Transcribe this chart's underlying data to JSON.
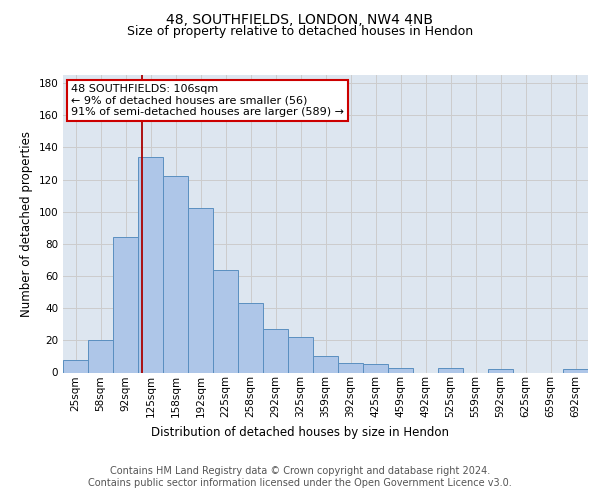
{
  "title1": "48, SOUTHFIELDS, LONDON, NW4 4NB",
  "title2": "Size of property relative to detached houses in Hendon",
  "xlabel": "Distribution of detached houses by size in Hendon",
  "ylabel": "Number of detached properties",
  "bar_labels": [
    "25sqm",
    "58sqm",
    "92sqm",
    "125sqm",
    "158sqm",
    "192sqm",
    "225sqm",
    "258sqm",
    "292sqm",
    "325sqm",
    "359sqm",
    "392sqm",
    "425sqm",
    "459sqm",
    "492sqm",
    "525sqm",
    "559sqm",
    "592sqm",
    "625sqm",
    "659sqm",
    "692sqm"
  ],
  "bar_values": [
    8,
    20,
    84,
    134,
    122,
    102,
    64,
    43,
    27,
    22,
    10,
    6,
    5,
    3,
    0,
    3,
    0,
    2,
    0,
    0,
    2
  ],
  "bar_color": "#aec6e8",
  "bar_edge_color": "#5a8fc0",
  "vline_x": 2.65,
  "vline_color": "#aa0000",
  "annotation_text": "48 SOUTHFIELDS: 106sqm\n← 9% of detached houses are smaller (56)\n91% of semi-detached houses are larger (589) →",
  "annotation_box_color": "#ffffff",
  "annotation_box_edge": "#cc0000",
  "ylim": [
    0,
    185
  ],
  "yticks": [
    0,
    20,
    40,
    60,
    80,
    100,
    120,
    140,
    160,
    180
  ],
  "grid_color": "#cccccc",
  "bg_color": "#dde6f0",
  "footer_text": "Contains HM Land Registry data © Crown copyright and database right 2024.\nContains public sector information licensed under the Open Government Licence v3.0.",
  "title_fontsize": 10,
  "subtitle_fontsize": 9,
  "axis_label_fontsize": 8.5,
  "tick_fontsize": 7.5,
  "annotation_fontsize": 8,
  "footer_fontsize": 7
}
